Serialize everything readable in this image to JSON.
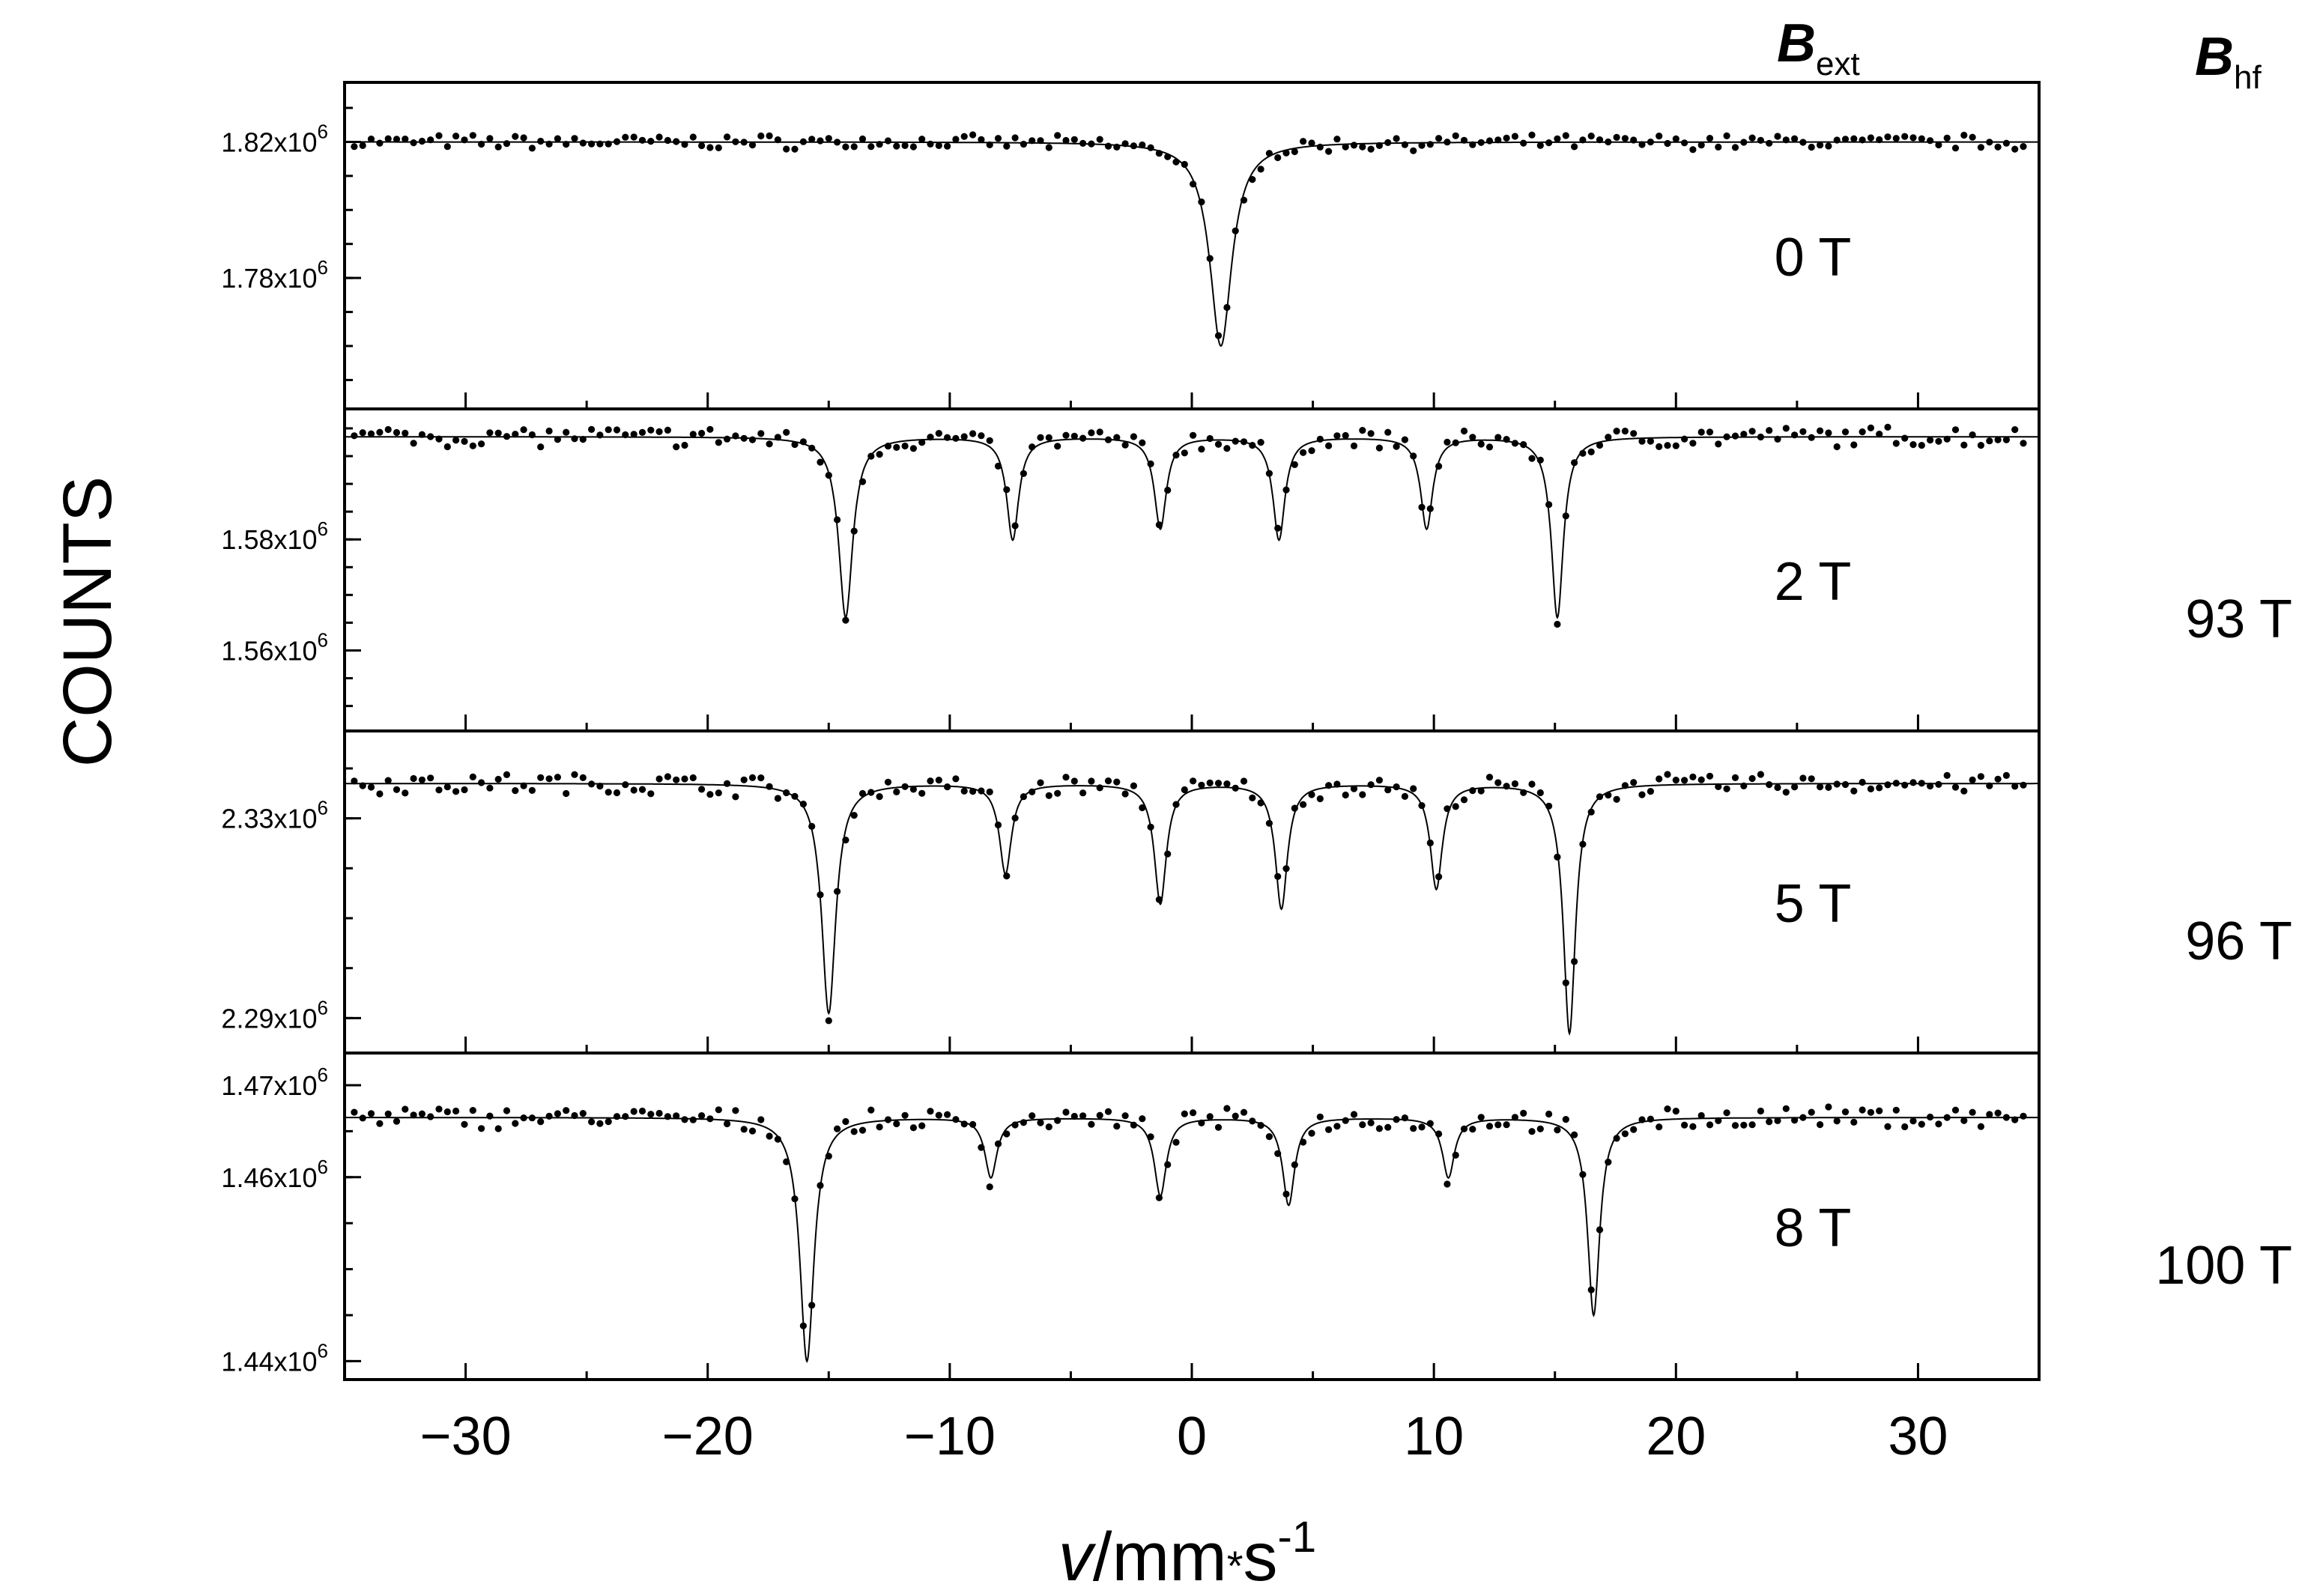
{
  "chart_data": {
    "type": "scatter",
    "xlabel_var": "v",
    "xlabel_unit": "/mm",
    "xlabel_dot": "*",
    "xlabel_s": "s",
    "xlabel_exp": "-1",
    "ylabel": "COUNTS",
    "xlim": [
      -35,
      35
    ],
    "xticks": [
      -30,
      -20,
      -10,
      0,
      10,
      20,
      30
    ],
    "header_ext_main": "B",
    "header_ext_sub": "ext",
    "header_hf_main": "B",
    "header_hf_sub": "hf",
    "panels": [
      {
        "field_label": "0 T",
        "hf_label": "",
        "ylim": [
          1.7415,
          1.8375
        ],
        "yticks": [
          {
            "value": 1.82,
            "mantissa": "1.82x10",
            "exp": "6"
          },
          {
            "value": 1.78,
            "mantissa": "1.78x10",
            "exp": "6"
          }
        ],
        "baseline": 1.82,
        "lines": [
          {
            "pos": 1.2,
            "depth": 0.06,
            "width": 0.55
          }
        ],
        "noise": 0.0018
      },
      {
        "field_label": "2 T",
        "hf_label": "93 T",
        "ylim": [
          1.5455,
          1.6035
        ],
        "yticks": [
          {
            "value": 1.58,
            "mantissa": "1.58x10",
            "exp": "6"
          },
          {
            "value": 1.56,
            "mantissa": "1.56x10",
            "exp": "6"
          }
        ],
        "baseline": 1.5985,
        "lines": [
          {
            "pos": -14.3,
            "depth": 0.0325,
            "width": 0.35
          },
          {
            "pos": -7.4,
            "depth": 0.0185,
            "width": 0.3
          },
          {
            "pos": -1.3,
            "depth": 0.0165,
            "width": 0.3
          },
          {
            "pos": 3.6,
            "depth": 0.0185,
            "width": 0.3
          },
          {
            "pos": 9.7,
            "depth": 0.0165,
            "width": 0.3
          },
          {
            "pos": 15.1,
            "depth": 0.0325,
            "width": 0.3
          }
        ],
        "noise": 0.0016
      },
      {
        "field_label": "5 T",
        "hf_label": "96 T",
        "ylim": [
          2.283,
          2.3475
        ],
        "yticks": [
          {
            "value": 2.33,
            "mantissa": "2.33x10",
            "exp": "6"
          },
          {
            "value": 2.29,
            "mantissa": "2.29x10",
            "exp": "6"
          }
        ],
        "baseline": 2.337,
        "lines": [
          {
            "pos": -15.0,
            "depth": 0.046,
            "width": 0.35
          },
          {
            "pos": -7.7,
            "depth": 0.018,
            "width": 0.3
          },
          {
            "pos": -1.3,
            "depth": 0.024,
            "width": 0.3
          },
          {
            "pos": 3.7,
            "depth": 0.025,
            "width": 0.3
          },
          {
            "pos": 10.1,
            "depth": 0.021,
            "width": 0.3
          },
          {
            "pos": 15.6,
            "depth": 0.05,
            "width": 0.3
          }
        ],
        "noise": 0.0018
      },
      {
        "field_label": "8 T",
        "hf_label": "100 T",
        "ylim": [
          1.438,
          1.4735
        ],
        "yticks": [
          {
            "value": 1.47,
            "mantissa": "1.47x10",
            "exp": "6"
          },
          {
            "value": 1.46,
            "mantissa": "1.46x10",
            "exp": "6"
          },
          {
            "value": 1.44,
            "mantissa": "1.44x10",
            "exp": "6"
          }
        ],
        "baseline": 1.4665,
        "lines": [
          {
            "pos": -15.9,
            "depth": 0.0265,
            "width": 0.35
          },
          {
            "pos": -8.3,
            "depth": 0.0065,
            "width": 0.3
          },
          {
            "pos": -1.3,
            "depth": 0.0085,
            "width": 0.3
          },
          {
            "pos": 4.0,
            "depth": 0.0095,
            "width": 0.3
          },
          {
            "pos": 10.6,
            "depth": 0.0065,
            "width": 0.3
          },
          {
            "pos": 16.6,
            "depth": 0.0215,
            "width": 0.3
          }
        ],
        "noise": 0.001
      }
    ]
  }
}
